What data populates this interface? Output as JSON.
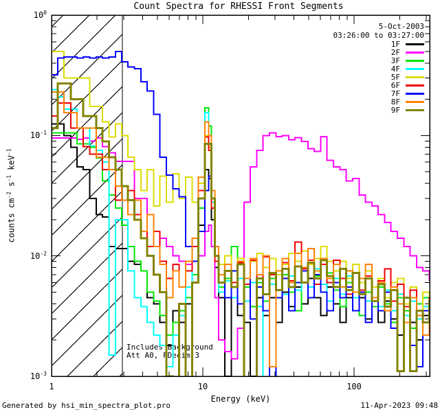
{
  "title": "Count Spectra for RHESSI Front Segments",
  "header": {
    "date": "5-Oct-2003",
    "time_range": "03:26:00 to 03:27:00"
  },
  "annotations": {
    "line1": "Includes Background",
    "line2": "Att A0, FDecim 3"
  },
  "xlabel": "Energy (keV)",
  "ylabel_parts": [
    {
      "t": "counts cm"
    },
    {
      "s": "-2"
    },
    {
      "t": " s"
    },
    {
      "s": "-1"
    },
    {
      "t": " keV"
    },
    {
      "s": "-1"
    }
  ],
  "footer": {
    "left": "Generated by hsi_min_spectra_plot.pro",
    "right": "11-Apr-2023 09:48"
  },
  "axes": {
    "y_base": "10",
    "x_major_ticks": [
      {
        "value": 1,
        "label": "1"
      },
      {
        "value": 10,
        "label": "10"
      },
      {
        "value": 100,
        "label": "100"
      }
    ],
    "y_major_ticks": [
      {
        "value": 1,
        "exp": "0"
      },
      {
        "value": 0.1,
        "exp": "-1"
      },
      {
        "value": 0.01,
        "exp": "-2"
      },
      {
        "value": 0.001,
        "exp": "-3"
      }
    ]
  },
  "chart_data": {
    "type": "line",
    "title": "Count Spectra for RHESSI Front Segments",
    "xlabel": "Energy (keV)",
    "ylabel": "counts cm^-2 s^-1 keV^-1",
    "x_scale": "log",
    "y_scale": "log",
    "xlim": [
      1,
      316
    ],
    "ylim": [
      0.001,
      1.0
    ],
    "grid": false,
    "legend_position": "top-right",
    "hatched_region_kev": [
      1.0,
      2.94
    ],
    "energy_kev": [
      1.0,
      1.1,
      1.21,
      1.34,
      1.47,
      1.62,
      1.79,
      1.97,
      2.17,
      2.39,
      2.64,
      2.91,
      3.2,
      3.53,
      3.89,
      4.29,
      4.73,
      5.21,
      5.74,
      6.33,
      6.98,
      7.69,
      8.48,
      9.34,
      10.3,
      10.9,
      11.4,
      12.0,
      12.7,
      14.0,
      15.4,
      17.0,
      18.7,
      20.6,
      22.7,
      25.0,
      27.6,
      30.4,
      33.5,
      36.9,
      40.7,
      44.9,
      49.5,
      54.5,
      60.1,
      66.2,
      73.0,
      80.5,
      88.7,
      97.8,
      108,
      119,
      131,
      144,
      159,
      175,
      193,
      213,
      235,
      259,
      285,
      314
    ],
    "series": [
      {
        "name": "1F",
        "color": "#000000",
        "width": 2,
        "values": [
          0.125,
          0.125,
          0.1,
          0.08,
          0.055,
          0.052,
          0.03,
          0.022,
          0.021,
          0.012,
          0.0115,
          0.0115,
          0.009,
          0.0085,
          0.0075,
          0.0045,
          0.004,
          0.0028,
          0.0018,
          0.0035,
          0.0028,
          0.004,
          0.006,
          0.018,
          0.052,
          0.044,
          0.02,
          0.008,
          0.0045,
          0.001,
          0.0045,
          0.0032,
          0.0028,
          0.001,
          0.0045,
          0.0032,
          0.0045,
          0.0028,
          0.005,
          0.0038,
          0.0055,
          0.004,
          0.0065,
          0.0045,
          0.0032,
          0.0055,
          0.004,
          0.0028,
          0.0045,
          0.0035,
          0.0045,
          0.003,
          0.0038,
          0.0028,
          0.0042,
          0.003,
          0.0022,
          0.0035,
          0.0028,
          0.002,
          0.0032,
          0.0025
        ]
      },
      {
        "name": "2F",
        "color": "#ff00ff",
        "width": 2,
        "values": [
          0.095,
          0.095,
          0.095,
          0.095,
          0.093,
          0.095,
          0.09,
          0.095,
          0.081,
          0.072,
          0.061,
          0.061,
          0.061,
          0.03,
          0.03,
          0.022,
          0.016,
          0.014,
          0.012,
          0.01,
          0.009,
          0.0085,
          0.009,
          0.01,
          0.016,
          0.018,
          0.012,
          0.0045,
          0.002,
          0.0016,
          0.0014,
          0.0025,
          0.028,
          0.055,
          0.075,
          0.1,
          0.105,
          0.098,
          0.1,
          0.092,
          0.096,
          0.089,
          0.078,
          0.074,
          0.098,
          0.062,
          0.055,
          0.052,
          0.042,
          0.044,
          0.032,
          0.028,
          0.026,
          0.022,
          0.019,
          0.016,
          0.014,
          0.012,
          0.01,
          0.008,
          0.0075,
          0.0063
        ]
      },
      {
        "name": "3F",
        "color": "#00e600",
        "width": 2,
        "values": [
          0.105,
          0.105,
          0.105,
          0.105,
          0.085,
          0.085,
          0.08,
          0.065,
          0.042,
          0.032,
          0.025,
          0.018,
          0.012,
          0.009,
          0.0075,
          0.005,
          0.0042,
          0.0032,
          0.0022,
          0.0028,
          0.0035,
          0.0045,
          0.007,
          0.025,
          0.17,
          0.12,
          0.035,
          0.01,
          0.0055,
          0.0065,
          0.012,
          0.004,
          0.0055,
          0.0038,
          0.006,
          0.0042,
          0.0065,
          0.0045,
          0.007,
          0.005,
          0.0035,
          0.006,
          0.0045,
          0.0068,
          0.005,
          0.0072,
          0.0052,
          0.0038,
          0.006,
          0.0045,
          0.0032,
          0.005,
          0.0038,
          0.0055,
          0.004,
          0.0028,
          0.0045,
          0.0035,
          0.0025,
          0.004,
          0.0045,
          0.0035
        ]
      },
      {
        "name": "4F",
        "color": "#00ffff",
        "width": 2,
        "values": [
          0.24,
          0.21,
          0.165,
          0.165,
          0.115,
          0.115,
          0.082,
          0.075,
          0.06,
          0.0015,
          0.02,
          0.02,
          0.0075,
          0.0045,
          0.0038,
          0.0028,
          0.0022,
          0.0018,
          0.0012,
          0.0022,
          0.0032,
          0.0055,
          0.009,
          0.035,
          0.155,
          0.1,
          0.028,
          0.009,
          0.005,
          0.0062,
          0.0045,
          0.0065,
          0.0042,
          0.006,
          0.0038,
          0.0009,
          0.0058,
          0.0075,
          0.0048,
          0.0068,
          0.0052,
          0.0075,
          0.0055,
          0.0078,
          0.0058,
          0.0042,
          0.0065,
          0.0048,
          0.0068,
          0.0045,
          0.006,
          0.0042,
          0.0055,
          0.0038,
          0.0052,
          0.0035,
          0.0048,
          0.0032,
          0.0042,
          0.003,
          0.0038,
          0.0028
        ]
      },
      {
        "name": "5F",
        "color": "#dcdc00",
        "width": 2,
        "values": [
          0.5,
          0.5,
          0.3,
          0.3,
          0.3,
          0.3,
          0.174,
          0.174,
          0.13,
          0.097,
          0.125,
          0.1,
          0.066,
          0.052,
          0.035,
          0.052,
          0.026,
          0.046,
          0.028,
          0.048,
          0.03,
          0.045,
          0.028,
          0.04,
          0.1,
          0.08,
          0.03,
          0.012,
          0.0085,
          0.01,
          0.0075,
          0.0095,
          0.0065,
          0.009,
          0.0105,
          0.008,
          0.0095,
          0.007,
          0.0085,
          0.0105,
          0.009,
          0.011,
          0.0085,
          0.0095,
          0.012,
          0.009,
          0.0075,
          0.009,
          0.0065,
          0.0085,
          0.006,
          0.0075,
          0.0055,
          0.0065,
          0.0045,
          0.006,
          0.0065,
          0.004,
          0.0055,
          0.0035,
          0.005,
          0.0045
        ]
      },
      {
        "name": "6F",
        "color": "#f00000",
        "width": 2,
        "values": [
          0.145,
          0.186,
          0.186,
          0.115,
          0.115,
          0.081,
          0.07,
          0.07,
          0.052,
          0.052,
          0.029,
          0.029,
          0.035,
          0.022,
          0.016,
          0.012,
          0.016,
          0.009,
          0.0065,
          0.0085,
          0.0055,
          0.0075,
          0.012,
          0.035,
          0.097,
          0.075,
          0.025,
          0.009,
          0.006,
          0.0085,
          0.006,
          0.0088,
          0.0058,
          0.0092,
          0.0065,
          0.0098,
          0.007,
          0.0052,
          0.0088,
          0.0062,
          0.013,
          0.0078,
          0.0092,
          0.0058,
          0.0085,
          0.006,
          0.0092,
          0.0065,
          0.0048,
          0.0072,
          0.0052,
          0.0068,
          0.0045,
          0.0062,
          0.0078,
          0.0042,
          0.0058,
          0.0038,
          0.0052,
          0.0035,
          0.0028,
          0.0045
        ]
      },
      {
        "name": "7F",
        "color": "#0000ff",
        "width": 2,
        "values": [
          0.32,
          0.44,
          0.45,
          0.45,
          0.44,
          0.45,
          0.44,
          0.45,
          0.44,
          0.45,
          0.5,
          0.41,
          0.37,
          0.36,
          0.28,
          0.235,
          0.15,
          0.066,
          0.047,
          0.036,
          0.031,
          0.012,
          0.009,
          0.016,
          0.035,
          0.046,
          0.03,
          0.012,
          0.006,
          0.0045,
          0.0075,
          0.004,
          0.0065,
          0.003,
          0.0055,
          0.0035,
          0.0009,
          0.0045,
          0.0065,
          0.0035,
          0.006,
          0.0075,
          0.0045,
          0.007,
          0.005,
          0.0035,
          0.006,
          0.0045,
          0.0055,
          0.0035,
          0.005,
          0.0028,
          0.0045,
          0.0035,
          0.005,
          0.0025,
          0.004,
          0.0045,
          0.0018,
          0.0012,
          0.0035,
          0.003
        ]
      },
      {
        "name": "8F",
        "color": "#ff8000",
        "width": 2,
        "values": [
          0.23,
          0.23,
          0.155,
          0.155,
          0.115,
          0.115,
          0.115,
          0.066,
          0.066,
          0.052,
          0.038,
          0.029,
          0.022,
          0.029,
          0.016,
          0.022,
          0.012,
          0.0085,
          0.0045,
          0.0075,
          0.0055,
          0.009,
          0.014,
          0.045,
          0.13,
          0.1,
          0.035,
          0.012,
          0.007,
          0.0085,
          0.0055,
          0.009,
          0.0065,
          0.0095,
          0.007,
          0.01,
          0.0012,
          0.0075,
          0.0095,
          0.006,
          0.0105,
          0.008,
          0.0115,
          0.0075,
          0.0095,
          0.0065,
          0.0085,
          0.0055,
          0.0075,
          0.005,
          0.0065,
          0.0085,
          0.0045,
          0.006,
          0.0035,
          0.0055,
          0.004,
          0.0028,
          0.0045,
          0.0032,
          0.0022,
          0.0035
        ]
      },
      {
        "name": "9F",
        "color": "#848400",
        "width": 3,
        "values": [
          0.115,
          0.27,
          0.27,
          0.2,
          0.2,
          0.145,
          0.145,
          0.115,
          0.089,
          0.066,
          0.052,
          0.038,
          0.029,
          0.02,
          0.014,
          0.01,
          0.007,
          0.005,
          0.001,
          0.0008,
          0.004,
          0.0008,
          0.006,
          0.03,
          0.085,
          0.085,
          0.03,
          0.01,
          0.006,
          0.0075,
          0.0055,
          0.0085,
          0.0008,
          0.0008,
          0.0065,
          0.0048,
          0.0072,
          0.0052,
          0.0078,
          0.0055,
          0.0082,
          0.006,
          0.0088,
          0.0065,
          0.0092,
          0.0068,
          0.0055,
          0.0078,
          0.0052,
          0.0072,
          0.0048,
          0.0065,
          0.0042,
          0.0058,
          0.0038,
          0.0052,
          0.0011,
          0.0045,
          0.0011,
          0.0035,
          0.0028,
          0.0042
        ]
      }
    ]
  }
}
